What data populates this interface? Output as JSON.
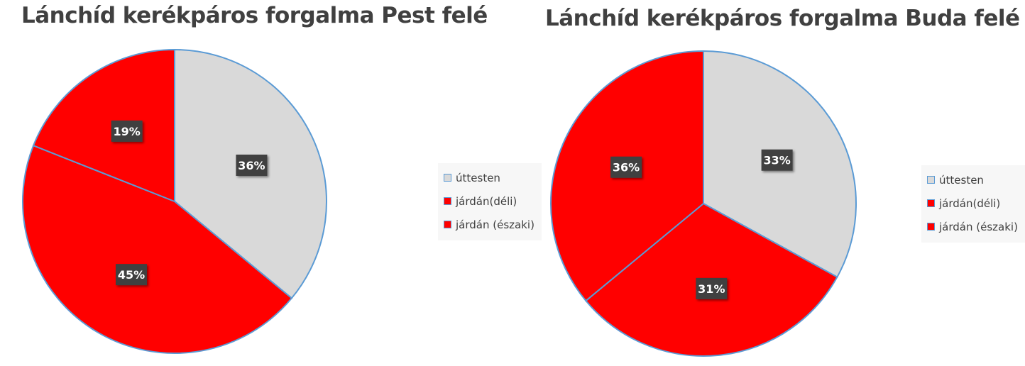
{
  "chart_data": [
    {
      "type": "pie",
      "title": "Lánchíd kerékpáros forgalma Pest felé",
      "slices": [
        {
          "label": "úttesten",
          "value": 36,
          "data_label": "36%",
          "color": "#d9d9d9"
        },
        {
          "label": "járdán(déli)",
          "value": 45,
          "data_label": "45%",
          "color": "#ff0000"
        },
        {
          "label": "járdán (északi)",
          "value": 19,
          "data_label": "19%",
          "color": "#ff0000"
        }
      ],
      "legend": "right"
    },
    {
      "type": "pie",
      "title": "Lánchíd kerékpáros forgalma Buda felé",
      "slices": [
        {
          "label": "úttesten",
          "value": 33,
          "data_label": "33%",
          "color": "#d9d9d9"
        },
        {
          "label": "járdán(déli)",
          "value": 31,
          "data_label": "31%",
          "color": "#ff0000"
        },
        {
          "label": "járdán (északi)",
          "value": 36,
          "data_label": "36%",
          "color": "#ff0000"
        }
      ],
      "legend": "right"
    }
  ],
  "colors": {
    "slice_outline": "#5b9bd5",
    "label_box": "#404040",
    "label_text": "#ffffff"
  }
}
